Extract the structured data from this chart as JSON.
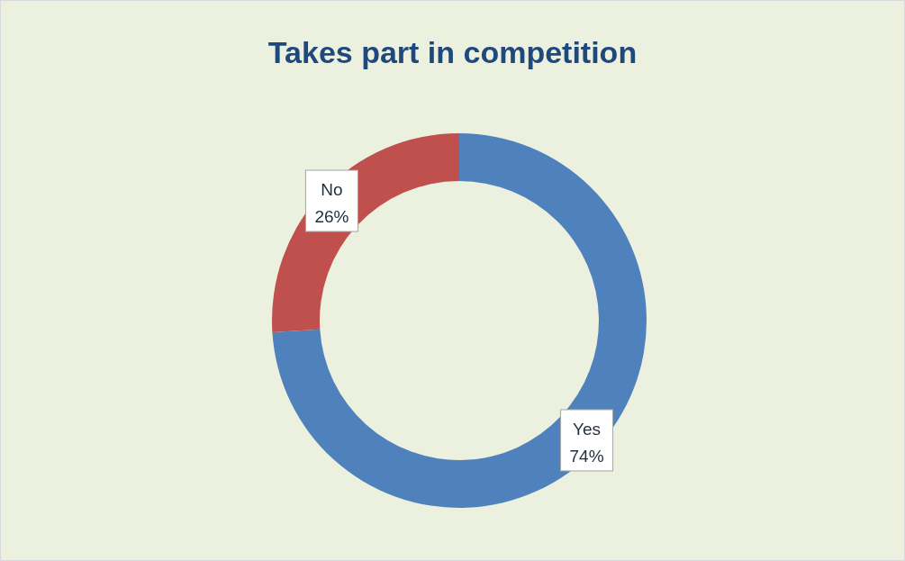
{
  "chart_data": {
    "type": "donut",
    "title": "Takes part in competition",
    "categories": [
      "Yes",
      "No"
    ],
    "values": [
      74,
      26
    ],
    "value_labels": [
      "74%",
      "26%"
    ],
    "colors": [
      "#4f81bd",
      "#c0504d"
    ]
  }
}
